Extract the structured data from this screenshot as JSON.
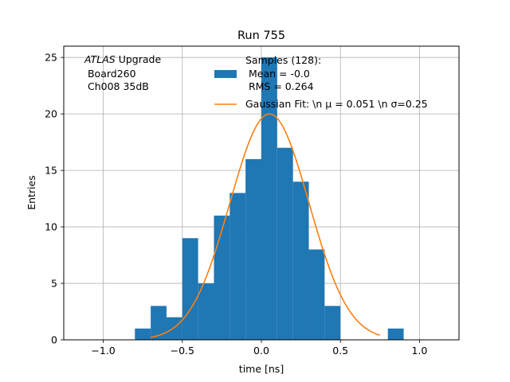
{
  "chart_data": {
    "type": "bar",
    "title": "Run 755",
    "xlabel": "time [ns]",
    "ylabel": "Entries",
    "xlim": [
      -1.25,
      1.25
    ],
    "ylim": [
      0,
      26
    ],
    "xticks": [
      -1.0,
      -0.5,
      0.0,
      0.5,
      1.0
    ],
    "xtick_labels": [
      "−1.0",
      "−0.5",
      "0.0",
      "0.5",
      "1.0"
    ],
    "yticks": [
      0,
      5,
      10,
      15,
      20,
      25
    ],
    "ytick_labels": [
      "0",
      "5",
      "10",
      "15",
      "20",
      "25"
    ],
    "grid": true,
    "bin_edges": [
      -0.8,
      -0.7,
      -0.6,
      -0.5,
      -0.4,
      -0.3,
      -0.2,
      -0.1,
      0.0,
      0.1,
      0.2,
      0.3,
      0.4,
      0.5,
      0.6,
      0.7,
      0.8,
      0.9
    ],
    "counts": [
      1,
      3,
      2,
      9,
      5,
      11,
      13,
      16,
      25,
      17,
      14,
      8,
      3,
      0,
      0,
      0,
      1
    ],
    "histogram_color": "#1f77b4",
    "fit": {
      "name": "Gaussian",
      "amplitude": 20.0,
      "mu": 0.051,
      "sigma": 0.25,
      "x_range": [
        -0.7,
        0.75
      ],
      "color": "#ff7f0e"
    },
    "annotation": {
      "italic": "ATLAS",
      "rest": " Upgrade",
      "line2": " Board260",
      "line3": " Ch008 35dB"
    },
    "legend": {
      "position": "top-right",
      "hist_lines": [
        "Samples (128):",
        " Mean = -0.0",
        " RMS = 0.264"
      ],
      "fit_label": "Gaussian Fit: \\n μ = 0.051 \\n σ=0.25"
    }
  }
}
